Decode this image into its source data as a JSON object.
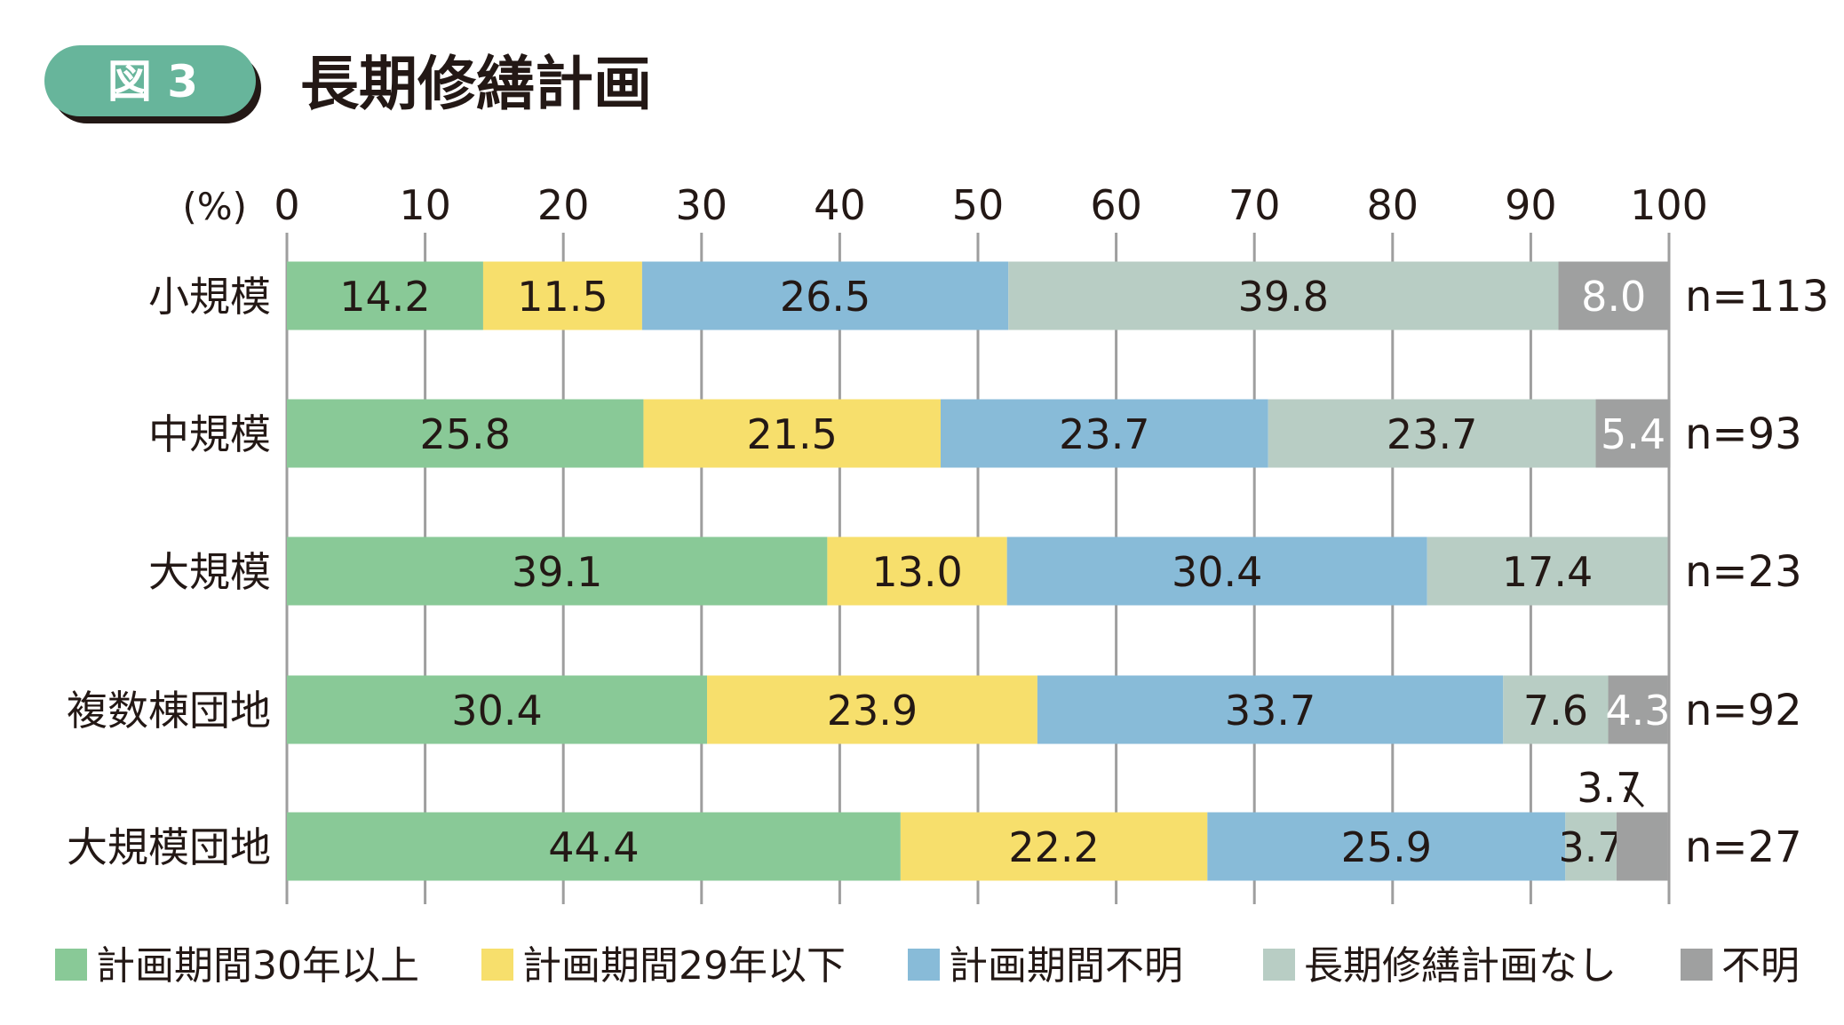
{
  "badge": "図 3",
  "colors": {
    "badge": "#67b59b",
    "badge_shadow": "#231815",
    "grid": "#9e9e9e"
  },
  "chart_data": {
    "type": "bar",
    "orientation": "horizontal",
    "stacked": true,
    "title": "長期修繕計画",
    "unit_label": "(%)",
    "xlim": [
      0,
      100
    ],
    "xticks": [
      "0",
      "10",
      "20",
      "30",
      "40",
      "50",
      "60",
      "70",
      "80",
      "90",
      "100"
    ],
    "categories": [
      "小規模",
      "中規模",
      "大規模",
      "複数棟団地",
      "大規模団地"
    ],
    "n_labels": [
      "n=113",
      "n=93",
      "n=23",
      "n=92",
      "n=27"
    ],
    "legend_position": "bottom",
    "series": [
      {
        "name": "計画期間30年以上",
        "color": "#89c997",
        "values": [
          14.2,
          25.8,
          39.1,
          30.4,
          44.4
        ],
        "labels": [
          "14.2",
          "25.8",
          "39.1",
          "30.4",
          "44.4"
        ]
      },
      {
        "name": "計画期間29年以下",
        "color": "#f7df6c",
        "values": [
          11.5,
          21.5,
          13.0,
          23.9,
          22.2
        ],
        "labels": [
          "11.5",
          "21.5",
          "13.0",
          "23.9",
          "22.2"
        ]
      },
      {
        "name": "計画期間不明",
        "color": "#88bbd8",
        "values": [
          26.5,
          23.7,
          30.4,
          33.7,
          25.9
        ],
        "labels": [
          "26.5",
          "23.7",
          "30.4",
          "33.7",
          "25.9"
        ]
      },
      {
        "name": "長期修繕計画なし",
        "color": "#b8cdc4",
        "values": [
          39.8,
          23.7,
          17.4,
          7.6,
          3.7
        ],
        "labels": [
          "39.8",
          "23.7",
          "17.4",
          "7.6",
          "3.7"
        ]
      },
      {
        "name": "不明",
        "color": "#9fa0a0",
        "values": [
          8.0,
          5.4,
          0,
          4.3,
          3.7
        ],
        "labels": [
          "8.0",
          "5.4",
          "",
          "4.3",
          "3.7"
        ]
      }
    ]
  }
}
